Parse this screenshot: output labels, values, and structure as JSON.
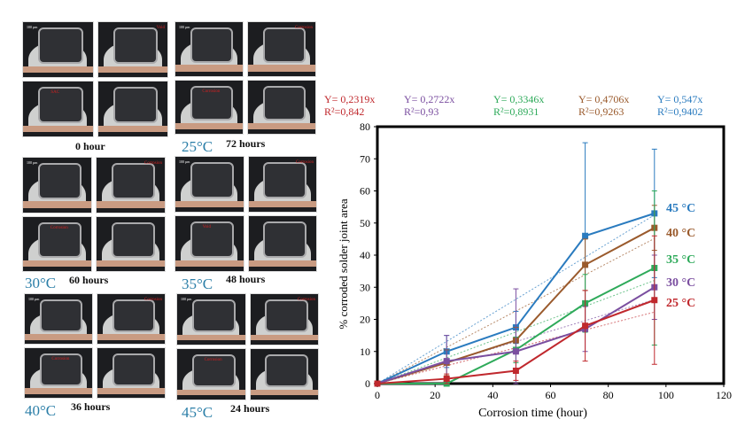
{
  "panels": [
    {
      "temp": "",
      "time": "0 hour",
      "notes": [
        "SAC",
        "Void"
      ]
    },
    {
      "temp": "25°C",
      "time": "72 hours",
      "notes": [
        "Corrosion",
        "Corrosion"
      ]
    },
    {
      "temp": "30°C",
      "time": "60 hours",
      "notes": [
        "Corrosion",
        "Corrosion"
      ]
    },
    {
      "temp": "35°C",
      "time": "48 hours",
      "notes": [
        "Void",
        "Corrosion"
      ]
    },
    {
      "temp": "40°C",
      "time": "36 hours",
      "notes": [
        "Corrosion",
        "Corrosion"
      ]
    },
    {
      "temp": "45°C",
      "time": "24 hours",
      "notes": [
        "Corrosion",
        "Corrosion"
      ]
    }
  ],
  "scale_bar": "100 µm",
  "equations": [
    {
      "eq": "Y= 0,2319x",
      "r2": "R²=0,842",
      "color": "#c0282d"
    },
    {
      "eq": "Y= 0,2722x",
      "r2": "R²=0,93",
      "color": "#7b4fa0"
    },
    {
      "eq": "Y= 0,3346x",
      "r2": "R²=0,8931",
      "color": "#2eaa5a"
    },
    {
      "eq": "Y= 0,4706x",
      "r2": "R²=0,9263",
      "color": "#9a5a2c"
    },
    {
      "eq": "Y= 0,547x",
      "r2": "R²=0,9402",
      "color": "#2a7bbf"
    }
  ],
  "chart_data": {
    "type": "line",
    "xlabel": "Corrosion time (hour)",
    "ylabel": "% corroded solder joint area",
    "xlim": [
      0,
      120
    ],
    "ylim": [
      0,
      80
    ],
    "xticks": [
      0,
      20,
      40,
      60,
      80,
      100,
      120
    ],
    "yticks": [
      0,
      10,
      20,
      30,
      40,
      50,
      60,
      70,
      80
    ],
    "grid": false,
    "x": [
      0,
      24,
      48,
      72,
      96
    ],
    "series": [
      {
        "name": "45 °C",
        "color": "#2a7bbf",
        "values": [
          0,
          10,
          17.5,
          46,
          53
        ],
        "error": [
          0,
          5,
          5,
          29,
          20
        ],
        "trend_slope": 0.547
      },
      {
        "name": "40 °C",
        "color": "#9a5a2c",
        "values": [
          0,
          6.5,
          13.5,
          37,
          48.5
        ],
        "error": [
          0,
          4,
          4,
          8,
          7
        ],
        "trend_slope": 0.4706
      },
      {
        "name": "35 °C",
        "color": "#2eaa5a",
        "values": [
          0,
          0,
          10.5,
          25,
          36
        ],
        "error": [
          0,
          0,
          4,
          9,
          24
        ],
        "trend_slope": 0.3346
      },
      {
        "name": "30 °C",
        "color": "#7b4fa0",
        "values": [
          0,
          7,
          10,
          17,
          30
        ],
        "error": [
          0,
          8,
          19.5,
          7,
          10
        ],
        "trend_slope": 0.2722
      },
      {
        "name": "25 °C",
        "color": "#c0282d",
        "values": [
          0,
          1.5,
          4,
          18,
          26
        ],
        "error": [
          0,
          1.5,
          3,
          11,
          20
        ],
        "trend_slope": 0.2319
      }
    ]
  }
}
